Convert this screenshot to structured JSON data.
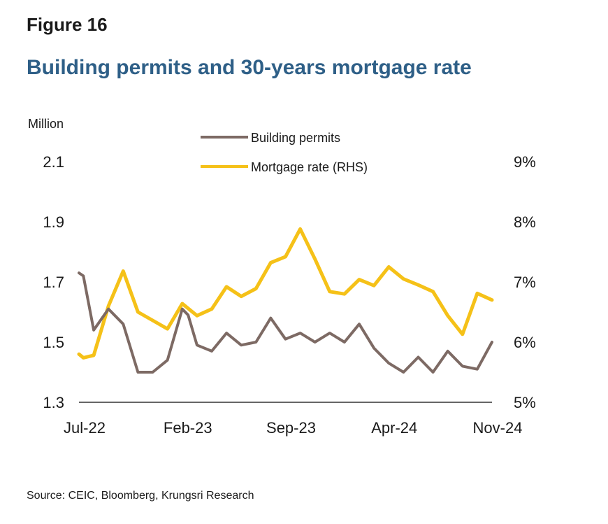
{
  "figure_label": "Figure 16",
  "figure_title": "Building permits and 30-years mortgage rate",
  "source": "Source: CEIC, Bloomberg, Krungsri Research",
  "chart_data": {
    "type": "line",
    "left_axis_unit": "Million",
    "x_tick_labels": [
      "Jul-22",
      "Feb-23",
      "Sep-23",
      "Apr-24",
      "Nov-24"
    ],
    "x_tick_indices": [
      0,
      7,
      14,
      21,
      28
    ],
    "y_left": {
      "min": 1.3,
      "max": 2.1,
      "ticks": [
        "1.3",
        "1.5",
        "1.7",
        "1.9",
        "2.1"
      ],
      "values": [
        1.3,
        1.5,
        1.7,
        1.9,
        2.1
      ]
    },
    "y_right": {
      "min": 5,
      "max": 9,
      "ticks": [
        "5%",
        "6%",
        "7%",
        "8%",
        "9%"
      ],
      "values": [
        5,
        6,
        7,
        8,
        9
      ]
    },
    "legend": [
      "Building permits",
      "Mortgage rate (RHS)"
    ],
    "colors": {
      "permits": "#7d6a64",
      "mortgage": "#f5c118",
      "axis": "#333333"
    },
    "series": [
      {
        "name": "Building permits",
        "axis": "left",
        "x": [
          0,
          0.3,
          1,
          2,
          3,
          4,
          5,
          6,
          7,
          7.4,
          8,
          9,
          10,
          11,
          12,
          13,
          14,
          15,
          16,
          17,
          18,
          19,
          20,
          21,
          22,
          23,
          24,
          25,
          26,
          27,
          28
        ],
        "y": [
          1.73,
          1.72,
          1.54,
          1.61,
          1.56,
          1.4,
          1.4,
          1.44,
          1.61,
          1.59,
          1.49,
          1.47,
          1.53,
          1.49,
          1.5,
          1.58,
          1.51,
          1.53,
          1.5,
          1.53,
          1.5,
          1.56,
          1.48,
          1.43,
          1.4,
          1.45,
          1.4,
          1.47,
          1.42,
          1.41,
          1.5
        ]
      },
      {
        "name": "Mortgage rate (RHS)",
        "axis": "right",
        "x": [
          0,
          0.3,
          1,
          2,
          3,
          4,
          5,
          6,
          7,
          8,
          9,
          10,
          11,
          12,
          13,
          14,
          15,
          16,
          17,
          18,
          19,
          20,
          21,
          22,
          23,
          24,
          25,
          26,
          27,
          28
        ],
        "y": [
          5.8,
          5.74,
          5.78,
          6.6,
          7.18,
          6.5,
          6.36,
          6.22,
          6.64,
          6.44,
          6.55,
          6.92,
          6.76,
          6.89,
          7.32,
          7.42,
          7.88,
          7.38,
          6.84,
          6.8,
          7.04,
          6.94,
          7.25,
          7.05,
          6.95,
          6.84,
          6.44,
          6.13,
          6.81,
          6.7
        ]
      }
    ]
  }
}
